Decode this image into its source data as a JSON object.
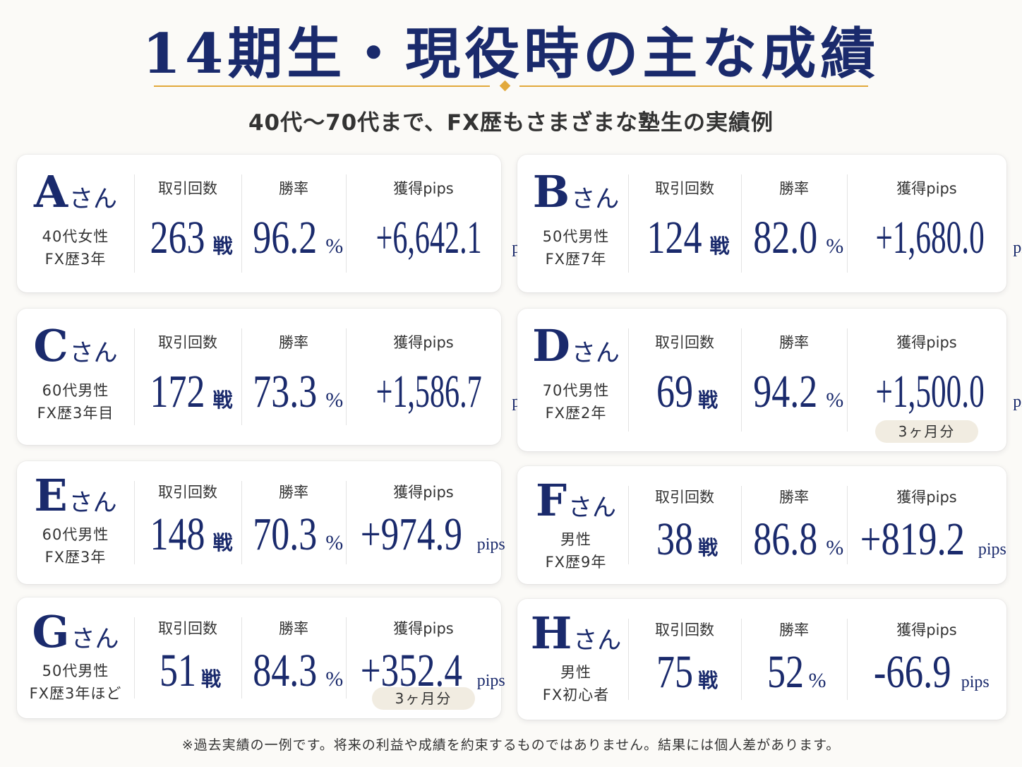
{
  "title": "14期生・現役時の主な成績",
  "subtitle": "40代〜70代まで、FX歴もさまざまな塾生の実績例",
  "labels": {
    "trades": "取引回数",
    "winrate": "勝率",
    "pips": "獲得pips",
    "san": "さん",
    "unit_trades": "戦",
    "unit_pct": "%",
    "unit_pips": "pips"
  },
  "members": [
    {
      "letter": "A",
      "profile1": "40代女性",
      "profile2": "FX歴3年",
      "trades": "263",
      "winrate": "96.2",
      "pips": "+6,642.1",
      "badge": ""
    },
    {
      "letter": "B",
      "profile1": "50代男性",
      "profile2": "FX歴7年",
      "trades": "124",
      "winrate": "82.0",
      "pips": "+1,680.0",
      "badge": ""
    },
    {
      "letter": "C",
      "profile1": "60代男性",
      "profile2": "FX歴3年目",
      "trades": "172",
      "winrate": "73.3",
      "pips": "+1,586.7",
      "badge": ""
    },
    {
      "letter": "D",
      "profile1": "70代男性",
      "profile2": "FX歴2年",
      "trades": "69",
      "winrate": "94.2",
      "pips": "+1,500.0",
      "badge": "3ヶ月分"
    },
    {
      "letter": "E",
      "profile1": "60代男性",
      "profile2": "FX歴3年",
      "trades": "148",
      "winrate": "70.3",
      "pips": "+974.9",
      "badge": ""
    },
    {
      "letter": "F",
      "profile1": "男性",
      "profile2": "FX歴9年",
      "trades": "38",
      "winrate": "86.8",
      "pips": "+819.2",
      "badge": ""
    },
    {
      "letter": "G",
      "profile1": "50代男性",
      "profile2": "FX歴3年ほど",
      "trades": "51",
      "winrate": "84.3",
      "pips": "+352.4",
      "badge": "3ヶ月分"
    },
    {
      "letter": "H",
      "profile1": "男性",
      "profile2": "FX初心者",
      "trades": "75",
      "winrate": "52",
      "pips": "-66.9",
      "badge": ""
    }
  ],
  "footnote": "※過去実績の一例です。将来の利益や成績を約束するものではありません。結果には個人差があります。",
  "colors": {
    "navy": "#1a2a6c",
    "gold": "#e2a93b",
    "badge_bg": "#f1ece1"
  }
}
